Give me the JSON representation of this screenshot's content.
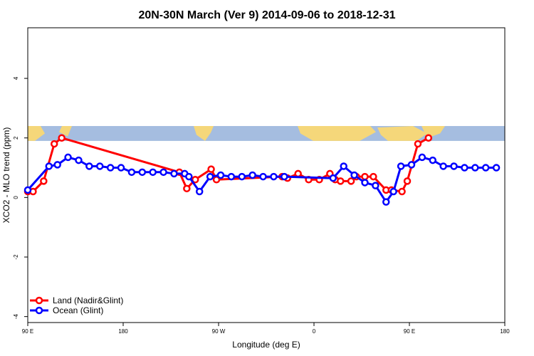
{
  "chart_data": {
    "type": "line",
    "title": "20N-30N March (Ver 9)   2014-09-06 to 2018-12-31",
    "xlabel": "Longitude (deg E)",
    "ylabel": "XCO2 - MLO trend (ppm)",
    "xlim": [
      90,
      540
    ],
    "ylim": [
      -4.2,
      5.7
    ],
    "x_ticks": [
      {
        "value": 90,
        "label": "90 E"
      },
      {
        "value": 180,
        "label": "180"
      },
      {
        "value": 270,
        "label": "90 W"
      },
      {
        "value": 360,
        "label": "0"
      },
      {
        "value": 450,
        "label": "90 E"
      },
      {
        "value": 540,
        "label": "180"
      }
    ],
    "y_ticks": [
      {
        "value": -4,
        "label": "-4"
      },
      {
        "value": -2,
        "label": "-2"
      },
      {
        "value": 0,
        "label": "0"
      },
      {
        "value": 2,
        "label": "2"
      },
      {
        "value": 4,
        "label": "4"
      }
    ],
    "map_strip": {
      "y_range": [
        1.9,
        2.4
      ],
      "ocean_color": "#a5bde0",
      "land_color": "#f5d77a"
    },
    "series": [
      {
        "name": "Land (Nadir&Glint)",
        "color": "#ff0000",
        "x": [
          90,
          95,
          105,
          115,
          122,
          233,
          240,
          248,
          263,
          268,
          330,
          335,
          345,
          355,
          365,
          375,
          380,
          385,
          395,
          400,
          408,
          416,
          428,
          433,
          443,
          448,
          458,
          468
        ],
        "y": [
          0.2,
          0.2,
          0.55,
          1.8,
          2.0,
          0.85,
          0.3,
          0.6,
          0.95,
          0.6,
          0.7,
          0.65,
          0.8,
          0.6,
          0.6,
          0.8,
          0.6,
          0.55,
          0.55,
          0.7,
          0.7,
          0.7,
          0.25,
          0.25,
          0.2,
          0.55,
          1.8,
          2.0
        ]
      },
      {
        "name": "Ocean (Glint)",
        "color": "#0000ff",
        "x": [
          90,
          110,
          118,
          128,
          138,
          148,
          158,
          168,
          178,
          188,
          198,
          208,
          218,
          228,
          238,
          242,
          252,
          262,
          272,
          282,
          292,
          302,
          312,
          322,
          332,
          378,
          388,
          398,
          408,
          418,
          428,
          435,
          442,
          452,
          462,
          472,
          482,
          492,
          502,
          512,
          522,
          532
        ],
        "y": [
          0.25,
          1.05,
          1.1,
          1.35,
          1.25,
          1.05,
          1.05,
          1.0,
          1.0,
          0.85,
          0.85,
          0.85,
          0.85,
          0.8,
          0.8,
          0.7,
          0.2,
          0.7,
          0.75,
          0.7,
          0.7,
          0.75,
          0.7,
          0.7,
          0.7,
          0.65,
          1.05,
          0.75,
          0.5,
          0.4,
          -0.15,
          0.2,
          1.05,
          1.1,
          1.35,
          1.25,
          1.05,
          1.05,
          1.0,
          1.0,
          1.0,
          1.0
        ]
      }
    ]
  }
}
